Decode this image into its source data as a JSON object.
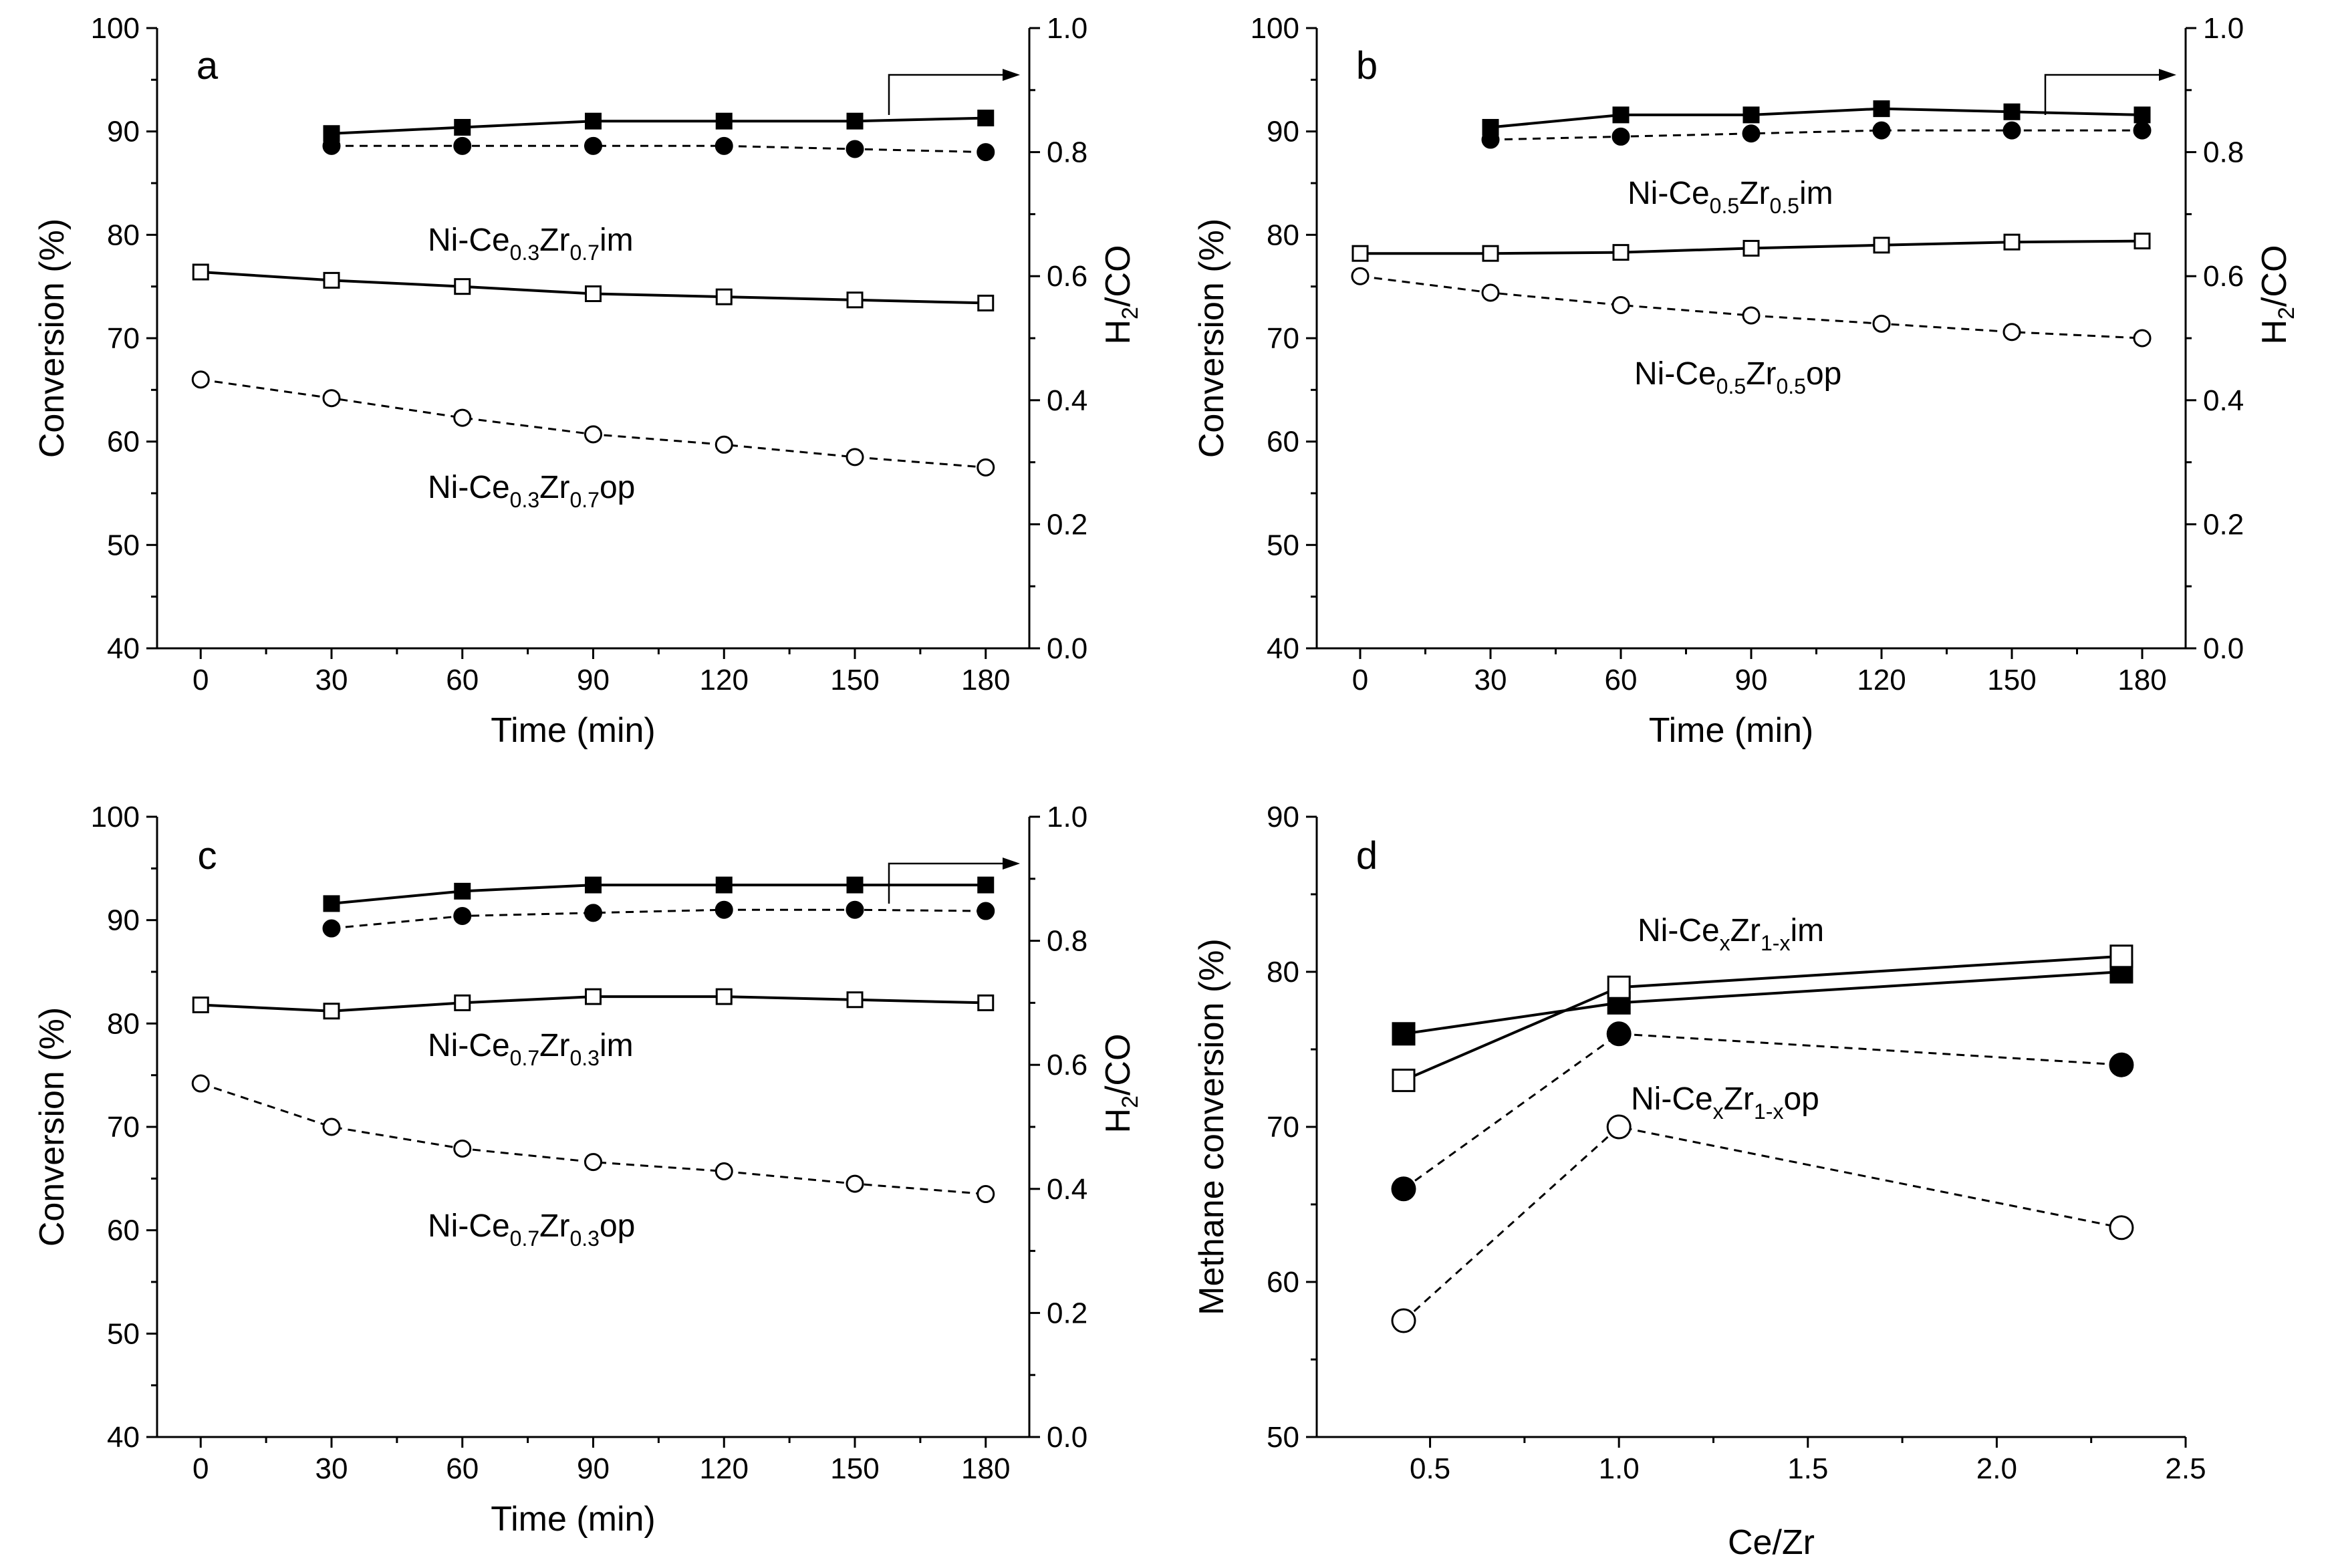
{
  "chart_data": [
    {
      "type": "line",
      "panel": "a",
      "xlabel": "Time (min)",
      "ylabel": "Conversion (%)",
      "y2label": "H2/CO",
      "x": [
        0,
        30,
        60,
        90,
        120,
        150,
        180
      ],
      "xlim": [
        -10,
        190
      ],
      "ylim": [
        40,
        100
      ],
      "y2lim": [
        0.0,
        1.0
      ],
      "xticks": [
        "0",
        "30",
        "60",
        "90",
        "120",
        "150",
        "180"
      ],
      "yticks": [
        "40",
        "50",
        "60",
        "70",
        "80",
        "90",
        "100"
      ],
      "y2ticks": [
        "0.0",
        "0.2",
        "0.4",
        "0.6",
        "0.8",
        "1.0"
      ],
      "grid": false,
      "series": [
        {
          "marker": "square-filled",
          "line": "solid",
          "axis": "right",
          "x": [
            30,
            60,
            90,
            120,
            150,
            180
          ],
          "values": [
            0.83,
            0.84,
            0.85,
            0.85,
            0.85,
            0.855
          ]
        },
        {
          "marker": "circle-filled",
          "line": "dashed",
          "axis": "right",
          "x": [
            30,
            60,
            90,
            120,
            150,
            180
          ],
          "values": [
            0.81,
            0.81,
            0.81,
            0.81,
            0.805,
            0.8
          ]
        },
        {
          "marker": "square-open",
          "line": "solid",
          "axis": "left",
          "x": [
            0,
            30,
            60,
            90,
            120,
            150,
            180
          ],
          "values": [
            76.4,
            75.6,
            75.0,
            74.3,
            74.0,
            73.7,
            73.4
          ]
        },
        {
          "marker": "circle-open",
          "line": "dashed",
          "axis": "left",
          "x": [
            0,
            30,
            60,
            90,
            120,
            150,
            180
          ],
          "values": [
            66.0,
            64.2,
            62.3,
            60.7,
            59.7,
            58.5,
            57.5
          ]
        }
      ],
      "annotations": [
        {
          "text": "Ni-Ce",
          "sub1": "0.3",
          "mid": "Zr",
          "sub2": "0.7",
          "tail": "im"
        },
        {
          "text": "Ni-Ce",
          "sub1": "0.3",
          "mid": "Zr",
          "sub2": "0.7",
          "tail": "op"
        }
      ]
    },
    {
      "type": "line",
      "panel": "b",
      "xlabel": "Time (min)",
      "ylabel": "Conversion (%)",
      "y2label": "H2/CO",
      "x": [
        0,
        30,
        60,
        90,
        120,
        150,
        180
      ],
      "xlim": [
        -10,
        190
      ],
      "ylim": [
        40,
        100
      ],
      "y2lim": [
        0.0,
        1.0
      ],
      "xticks": [
        "0",
        "30",
        "60",
        "90",
        "120",
        "150",
        "180"
      ],
      "yticks": [
        "40",
        "50",
        "60",
        "70",
        "80",
        "90",
        "100"
      ],
      "y2ticks": [
        "0.0",
        "0.2",
        "0.4",
        "0.6",
        "0.8",
        "1.0"
      ],
      "grid": false,
      "series": [
        {
          "marker": "square-filled",
          "line": "solid",
          "axis": "right",
          "x": [
            30,
            60,
            90,
            120,
            150,
            180
          ],
          "values": [
            0.84,
            0.86,
            0.86,
            0.87,
            0.865,
            0.86
          ]
        },
        {
          "marker": "circle-filled",
          "line": "dashed",
          "axis": "right",
          "x": [
            30,
            60,
            90,
            120,
            150,
            180
          ],
          "values": [
            0.82,
            0.825,
            0.83,
            0.835,
            0.835,
            0.835
          ]
        },
        {
          "marker": "square-open",
          "line": "solid",
          "axis": "left",
          "x": [
            0,
            30,
            60,
            90,
            120,
            150,
            180
          ],
          "values": [
            78.2,
            78.2,
            78.3,
            78.7,
            79.0,
            79.3,
            79.4
          ]
        },
        {
          "marker": "circle-open",
          "line": "dashed",
          "axis": "left",
          "x": [
            0,
            30,
            60,
            90,
            120,
            150,
            180
          ],
          "values": [
            76.0,
            74.4,
            73.2,
            72.2,
            71.4,
            70.6,
            70.0
          ]
        }
      ],
      "annotations": [
        {
          "text": "Ni-Ce",
          "sub1": "0.5",
          "mid": "Zr",
          "sub2": "0.5",
          "tail": "im"
        },
        {
          "text": "Ni-Ce",
          "sub1": "0.5",
          "mid": "Zr",
          "sub2": "0.5",
          "tail": "op"
        }
      ]
    },
    {
      "type": "line",
      "panel": "c",
      "xlabel": "Time (min)",
      "ylabel": "Conversion (%)",
      "y2label": "H2/CO",
      "x": [
        0,
        30,
        60,
        90,
        120,
        150,
        180
      ],
      "xlim": [
        -10,
        190
      ],
      "ylim": [
        40,
        100
      ],
      "y2lim": [
        0.0,
        1.0
      ],
      "xticks": [
        "0",
        "30",
        "60",
        "90",
        "120",
        "150",
        "180"
      ],
      "yticks": [
        "40",
        "50",
        "60",
        "70",
        "80",
        "90",
        "100"
      ],
      "y2ticks": [
        "0.0",
        "0.2",
        "0.4",
        "0.6",
        "0.8",
        "1.0"
      ],
      "grid": false,
      "series": [
        {
          "marker": "square-filled",
          "line": "solid",
          "axis": "right",
          "x": [
            30,
            60,
            90,
            120,
            150,
            180
          ],
          "values": [
            0.86,
            0.88,
            0.89,
            0.89,
            0.89,
            0.89
          ]
        },
        {
          "marker": "circle-filled",
          "line": "dashed",
          "axis": "right",
          "x": [
            30,
            60,
            90,
            120,
            150,
            180
          ],
          "values": [
            0.82,
            0.84,
            0.845,
            0.85,
            0.85,
            0.848
          ]
        },
        {
          "marker": "square-open",
          "line": "solid",
          "axis": "left",
          "x": [
            0,
            30,
            60,
            90,
            120,
            150,
            180
          ],
          "values": [
            81.8,
            81.2,
            82.0,
            82.6,
            82.6,
            82.3,
            82.0
          ]
        },
        {
          "marker": "circle-open",
          "line": "dashed",
          "axis": "left",
          "x": [
            0,
            30,
            60,
            90,
            120,
            150,
            180
          ],
          "values": [
            74.2,
            70.0,
            67.9,
            66.6,
            65.7,
            64.5,
            63.5
          ]
        }
      ],
      "annotations": [
        {
          "text": "Ni-Ce",
          "sub1": "0.7",
          "mid": "Zr",
          "sub2": "0.3",
          "tail": "im"
        },
        {
          "text": "Ni-Ce",
          "sub1": "0.7",
          "mid": "Zr",
          "sub2": "0.3",
          "tail": "op"
        }
      ]
    },
    {
      "type": "line",
      "panel": "d",
      "xlabel": "Ce/Zr",
      "ylabel": "Methane conversion (%)",
      "xlim": [
        0.2,
        2.5
      ],
      "ylim": [
        50,
        90
      ],
      "xticks": [
        "0.5",
        "1.0",
        "1.5",
        "2.0",
        "2.5"
      ],
      "yticks": [
        "50",
        "60",
        "70",
        "80",
        "90"
      ],
      "grid": false,
      "series": [
        {
          "marker": "square-filled",
          "line": "solid",
          "x": [
            0.43,
            1.0,
            2.33
          ],
          "values": [
            76,
            78,
            80
          ]
        },
        {
          "marker": "square-open",
          "line": "solid",
          "x": [
            0.43,
            1.0,
            2.33
          ],
          "values": [
            73,
            79,
            81
          ]
        },
        {
          "marker": "circle-filled",
          "line": "dashed",
          "x": [
            0.43,
            1.0,
            2.33
          ],
          "values": [
            66,
            76,
            74
          ]
        },
        {
          "marker": "circle-open",
          "line": "dashed",
          "x": [
            0.43,
            1.0,
            2.33
          ],
          "values": [
            57.5,
            70,
            63.5
          ]
        }
      ],
      "annotations": [
        {
          "text": "Ni-Ce",
          "sub1": "x",
          "mid": "Zr",
          "sub2": "1-x",
          "tail": "im"
        },
        {
          "text": "Ni-Ce",
          "sub1": "x",
          "mid": "Zr",
          "sub2": "1-x",
          "tail": "op"
        }
      ]
    }
  ]
}
